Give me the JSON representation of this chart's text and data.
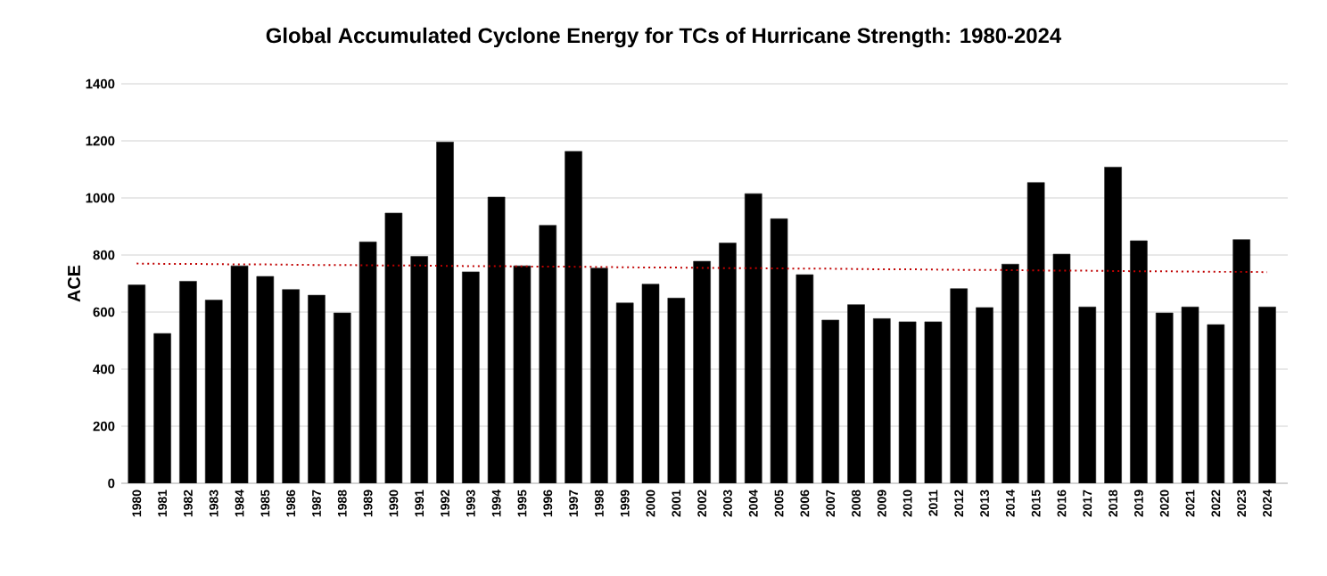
{
  "chart_data": {
    "type": "bar",
    "title": "Global Accumulated Cyclone Energy for TCs of Hurricane Strength: 1980-2024",
    "ylabel": "ACE",
    "categories": [
      "1980",
      "1981",
      "1982",
      "1983",
      "1984",
      "1985",
      "1986",
      "1987",
      "1988",
      "1989",
      "1990",
      "1991",
      "1992",
      "1993",
      "1994",
      "1995",
      "1996",
      "1997",
      "1998",
      "1999",
      "2000",
      "2001",
      "2002",
      "2003",
      "2004",
      "2005",
      "2006",
      "2007",
      "2008",
      "2009",
      "2010",
      "2011",
      "2012",
      "2013",
      "2014",
      "2015",
      "2016",
      "2017",
      "2018",
      "2019",
      "2020",
      "2021",
      "2022",
      "2023",
      "2024"
    ],
    "series": [
      {
        "color": "#000000",
        "values": [
          695,
          525,
          708,
          642,
          762,
          725,
          679,
          659,
          597,
          846,
          947,
          795,
          1196,
          741,
          1003,
          762,
          904,
          1163,
          754,
          632,
          698,
          649,
          778,
          842,
          1015,
          927,
          731,
          572,
          626,
          577,
          566,
          566,
          682,
          616,
          768,
          1054,
          803,
          618,
          1108,
          850,
          597,
          618,
          556,
          854,
          618
        ]
      },
      {
        "type": "line",
        "color": "#c00000",
        "line_style": "dotted",
        "values": [
          770,
          769,
          769,
          768,
          767,
          767,
          766,
          765,
          765,
          764,
          763,
          763,
          762,
          761,
          761,
          760,
          759,
          759,
          758,
          757,
          756,
          756,
          755,
          754,
          754,
          753,
          752,
          752,
          751,
          750,
          750,
          749,
          748,
          748,
          747,
          746,
          745,
          745,
          744,
          743,
          743,
          742,
          741,
          741,
          740
        ]
      }
    ],
    "ylim": [
      0,
      1400
    ],
    "yticks": [
      0,
      200,
      400,
      600,
      800,
      1000,
      1200,
      1400
    ],
    "grid": "y"
  }
}
